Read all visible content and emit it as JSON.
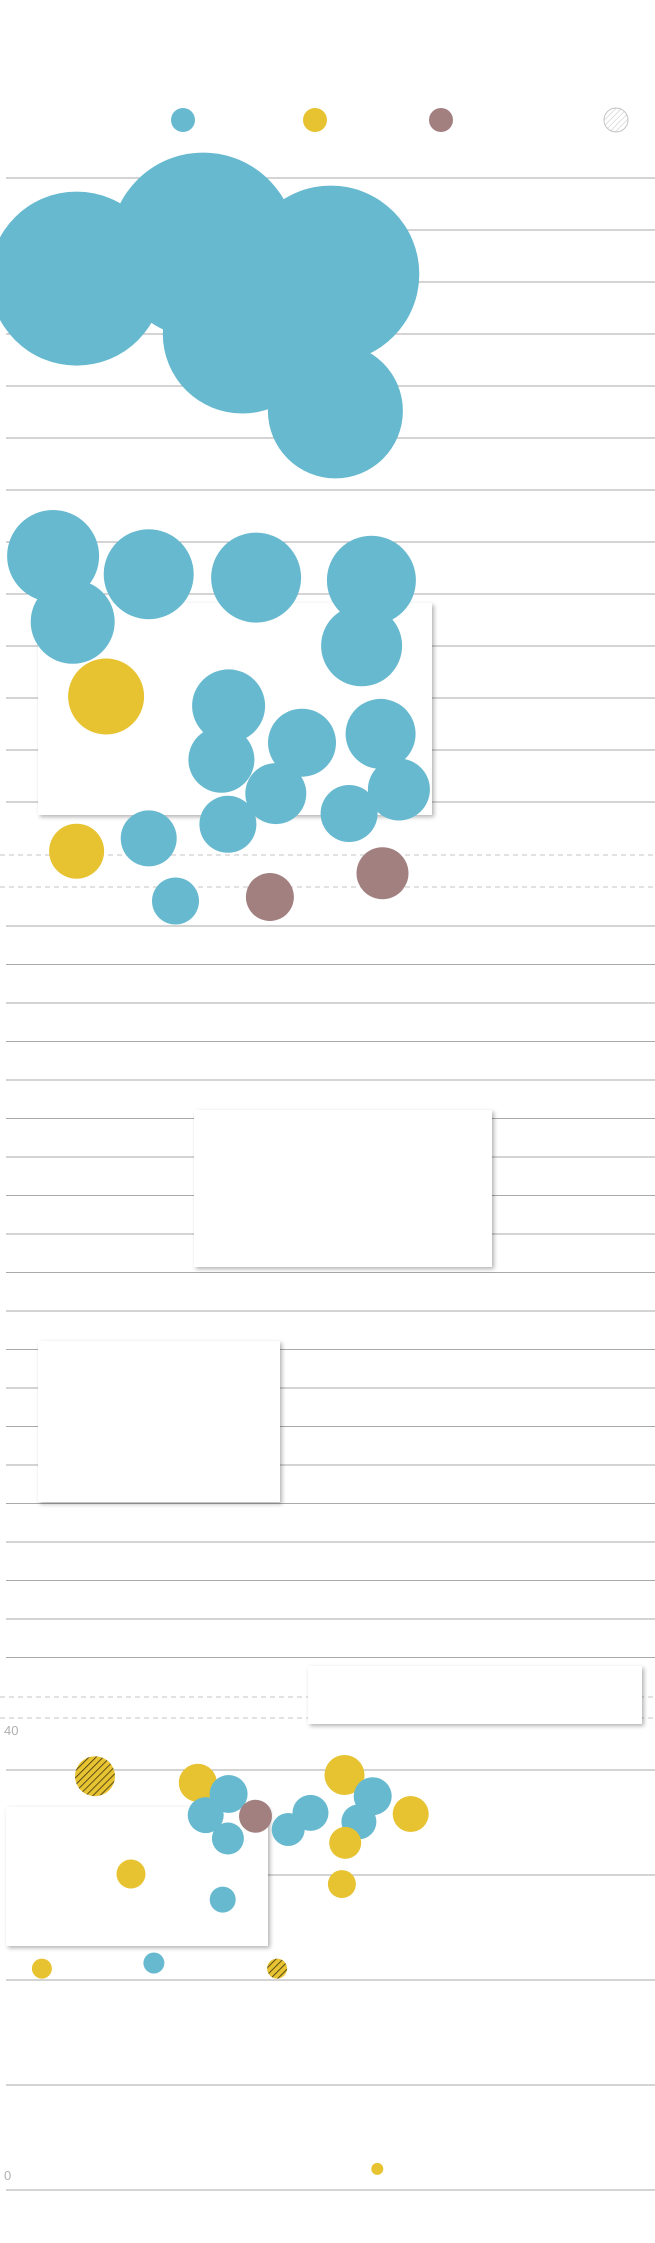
{
  "colors": {
    "blue": "#67b9cf",
    "yellow": "#e7c331",
    "mauve": "#a38080",
    "hatched": "#ffffff",
    "gridline": "#8c8c8c",
    "dashed": "#c6c6c6",
    "tick": "#b0b0b0"
  },
  "chart_data": {
    "type": "scatter",
    "title": "",
    "xlabel": "",
    "ylabel": "",
    "legend": {
      "placement": "top",
      "entries": [
        {
          "color": "blue",
          "style": "solid",
          "label": ""
        },
        {
          "color": "yellow",
          "style": "solid",
          "label": ""
        },
        {
          "color": "mauve",
          "style": "solid",
          "label": ""
        },
        {
          "color": "hatched",
          "style": "hatched",
          "label": ""
        }
      ]
    },
    "bottom_axis": {
      "ticks": [
        {
          "label": "40",
          "value": 40
        },
        {
          "label": "0",
          "value": 0
        }
      ],
      "ylim": [
        0,
        40
      ]
    },
    "bubbles": [
      {
        "x": 0.117,
        "y": 0.8758,
        "size": 174,
        "color": "blue",
        "style": "solid"
      },
      {
        "x": 0.31,
        "y": 0.8905,
        "size": 186,
        "color": "blue",
        "style": "solid"
      },
      {
        "x": 0.505,
        "y": 0.8778,
        "size": 177,
        "color": "blue",
        "style": "solid"
      },
      {
        "x": 0.37,
        "y": 0.8511,
        "size": 159,
        "color": "blue",
        "style": "solid"
      },
      {
        "x": 0.512,
        "y": 0.8168,
        "size": 135,
        "color": "blue",
        "style": "solid"
      },
      {
        "x": 0.081,
        "y": 0.7521,
        "size": 92,
        "color": "blue",
        "style": "solid"
      },
      {
        "x": 0.227,
        "y": 0.744,
        "size": 90,
        "color": "blue",
        "style": "solid"
      },
      {
        "x": 0.391,
        "y": 0.7425,
        "size": 90,
        "color": "blue",
        "style": "solid"
      },
      {
        "x": 0.567,
        "y": 0.7413,
        "size": 89,
        "color": "blue",
        "style": "solid"
      },
      {
        "x": 0.111,
        "y": 0.7228,
        "size": 84,
        "color": "blue",
        "style": "solid"
      },
      {
        "x": 0.552,
        "y": 0.7121,
        "size": 81,
        "color": "blue",
        "style": "solid"
      },
      {
        "x": 0.162,
        "y": 0.6895,
        "size": 76,
        "color": "yellow",
        "style": "solid"
      },
      {
        "x": 0.349,
        "y": 0.6853,
        "size": 73,
        "color": "blue",
        "style": "solid"
      },
      {
        "x": 0.461,
        "y": 0.6689,
        "size": 68,
        "color": "blue",
        "style": "solid"
      },
      {
        "x": 0.581,
        "y": 0.6728,
        "size": 70,
        "color": "blue",
        "style": "solid"
      },
      {
        "x": 0.338,
        "y": 0.6613,
        "size": 66,
        "color": "blue",
        "style": "solid"
      },
      {
        "x": 0.609,
        "y": 0.648,
        "size": 62,
        "color": "blue",
        "style": "solid"
      },
      {
        "x": 0.421,
        "y": 0.6462,
        "size": 61,
        "color": "blue",
        "style": "solid"
      },
      {
        "x": 0.533,
        "y": 0.6373,
        "size": 57,
        "color": "blue",
        "style": "solid"
      },
      {
        "x": 0.348,
        "y": 0.6325,
        "size": 57,
        "color": "blue",
        "style": "solid"
      },
      {
        "x": 0.117,
        "y": 0.6205,
        "size": 55,
        "color": "yellow",
        "style": "solid"
      },
      {
        "x": 0.227,
        "y": 0.6262,
        "size": 56,
        "color": "blue",
        "style": "solid"
      },
      {
        "x": 0.584,
        "y": 0.6107,
        "size": 52,
        "color": "mauve",
        "style": "solid"
      },
      {
        "x": 0.412,
        "y": 0.6001,
        "size": 48,
        "color": "mauve",
        "style": "solid"
      },
      {
        "x": 0.268,
        "y": 0.5983,
        "size": 47,
        "color": "blue",
        "style": "solid"
      },
      {
        "x": 0.145,
        "y": 37.2,
        "size": 40,
        "color": "yellow",
        "style": "hatched"
      },
      {
        "x": 0.302,
        "y": 36.6,
        "size": 38,
        "color": "yellow",
        "style": "solid"
      },
      {
        "x": 0.526,
        "y": 37.3,
        "size": 40,
        "color": "yellow",
        "style": "solid"
      },
      {
        "x": 0.349,
        "y": 35.6,
        "size": 38,
        "color": "blue",
        "style": "solid"
      },
      {
        "x": 0.569,
        "y": 35.4,
        "size": 38,
        "color": "blue",
        "style": "solid"
      },
      {
        "x": 0.627,
        "y": 33.8,
        "size": 36,
        "color": "yellow",
        "style": "solid"
      },
      {
        "x": 0.314,
        "y": 33.7,
        "size": 36,
        "color": "blue",
        "style": "solid"
      },
      {
        "x": 0.39,
        "y": 33.6,
        "size": 33,
        "color": "mauve",
        "style": "solid"
      },
      {
        "x": 0.474,
        "y": 33.9,
        "size": 36,
        "color": "blue",
        "style": "solid"
      },
      {
        "x": 0.548,
        "y": 33.1,
        "size": 35,
        "color": "blue",
        "style": "solid"
      },
      {
        "x": 0.44,
        "y": 32.4,
        "size": 33,
        "color": "blue",
        "style": "solid"
      },
      {
        "x": 0.348,
        "y": 31.6,
        "size": 32,
        "color": "blue",
        "style": "solid"
      },
      {
        "x": 0.527,
        "y": 31.2,
        "size": 32,
        "color": "yellow",
        "style": "solid"
      },
      {
        "x": 0.2,
        "y": 28.4,
        "size": 29,
        "color": "yellow",
        "style": "solid"
      },
      {
        "x": 0.522,
        "y": 27.5,
        "size": 28,
        "color": "yellow",
        "style": "solid"
      },
      {
        "x": 0.34,
        "y": 26.1,
        "size": 26,
        "color": "blue",
        "style": "solid"
      },
      {
        "x": 0.064,
        "y": 19.9,
        "size": 20,
        "color": "yellow",
        "style": "solid"
      },
      {
        "x": 0.235,
        "y": 20.4,
        "size": 21,
        "color": "blue",
        "style": "solid"
      },
      {
        "x": 0.423,
        "y": 19.9,
        "size": 20,
        "color": "yellow",
        "style": "hatched"
      },
      {
        "x": 0.576,
        "y": 1.9,
        "size": 12,
        "color": "yellow",
        "style": "solid"
      }
    ]
  }
}
